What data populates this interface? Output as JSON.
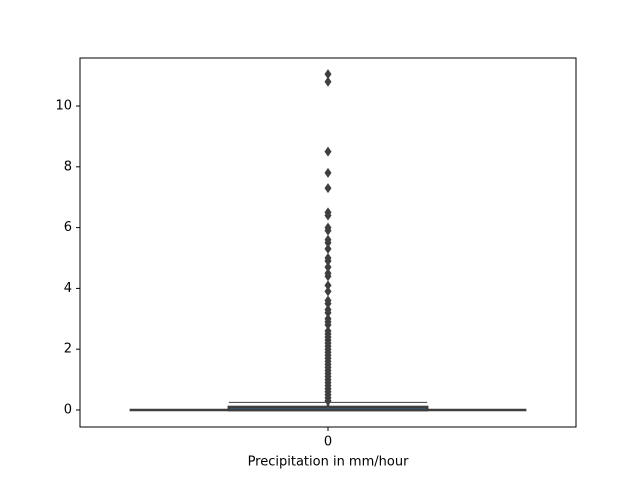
{
  "chart_data": {
    "type": "box",
    "xlabel": "Precipitation in mm/hour",
    "categories": [
      "0"
    ],
    "boxes": [
      {
        "whislo": 0,
        "q1": 0,
        "med": 0,
        "q3": 0.1,
        "whishi": 0.25,
        "fliers": [
          0.3,
          0.4,
          0.5,
          0.6,
          0.7,
          0.8,
          0.9,
          1.0,
          1.1,
          1.2,
          1.3,
          1.4,
          1.5,
          1.6,
          1.7,
          1.8,
          1.9,
          2.0,
          2.1,
          2.2,
          2.3,
          2.4,
          2.5,
          2.6,
          2.8,
          2.9,
          3.0,
          3.2,
          3.3,
          3.5,
          3.6,
          3.9,
          4.1,
          4.4,
          4.5,
          4.7,
          4.9,
          5.0,
          5.3,
          5.5,
          5.6,
          5.9,
          6.0,
          6.4,
          6.5,
          7.3,
          7.8,
          8.5,
          10.8,
          11.05
        ]
      }
    ],
    "color": "#3f3f3f",
    "ylim": [
      -0.56,
      11.58
    ],
    "yticks": [
      0,
      2,
      4,
      6,
      8,
      10
    ]
  }
}
